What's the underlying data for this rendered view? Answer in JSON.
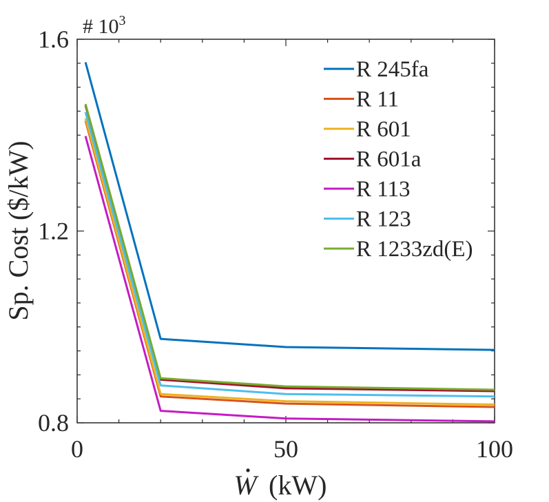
{
  "chart_data": {
    "type": "line",
    "title": "",
    "exponent_label": "# 10",
    "exponent_power": "3",
    "xlabel_symbol": "W",
    "xlabel_unit": "(kW)",
    "ylabel": "Sp. Cost ($/kW)",
    "xlim": [
      0,
      100
    ],
    "ylim": [
      0.8,
      1.6
    ],
    "xticks": [
      0,
      50,
      100
    ],
    "xtick_labels": [
      "0",
      "50",
      "100"
    ],
    "yticks": [
      0.8,
      1.2,
      1.6
    ],
    "ytick_labels": [
      "0.8",
      "1.2",
      "1.6"
    ],
    "grid": false,
    "legend_position": "top-right",
    "x": [
      2,
      20,
      50,
      100
    ],
    "series": [
      {
        "name": "R 245fa",
        "color": "#0072bd",
        "values": [
          1.552,
          0.975,
          0.958,
          0.952
        ]
      },
      {
        "name": "R 11",
        "color": "#d95319",
        "values": [
          1.43,
          0.855,
          0.84,
          0.833
        ]
      },
      {
        "name": "R 601",
        "color": "#edb120",
        "values": [
          1.435,
          0.86,
          0.845,
          0.838
        ]
      },
      {
        "name": "R 601a",
        "color": "#a2142f",
        "values": [
          1.462,
          0.89,
          0.872,
          0.866
        ]
      },
      {
        "name": "R 113",
        "color": "#c41bc4",
        "values": [
          1.398,
          0.825,
          0.809,
          0.803
        ]
      },
      {
        "name": "R 123",
        "color": "#4dbeee",
        "values": [
          1.448,
          0.878,
          0.86,
          0.855
        ]
      },
      {
        "name": "R 1233zd(E)",
        "color": "#77ac30",
        "values": [
          1.465,
          0.893,
          0.876,
          0.869
        ]
      }
    ]
  }
}
